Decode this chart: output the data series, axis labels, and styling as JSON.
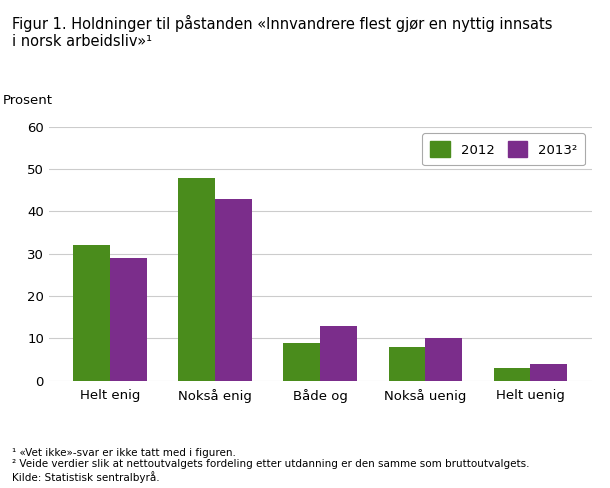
{
  "title": "Figur 1. Holdninger til påstanden «Innvandrere flest gjør en nyttig innsats\ni norsk arbeidsliv»¹",
  "ylabel": "Prosent",
  "categories": [
    "Helt enig",
    "Nokså enig",
    "Både og",
    "Nokså uenig",
    "Helt uenig"
  ],
  "values_2012": [
    32,
    48,
    9,
    8,
    3
  ],
  "values_2013": [
    29,
    43,
    13,
    10,
    4
  ],
  "color_2012": "#4a8c1c",
  "color_2013": "#7b2d8b",
  "legend_2012": "2012",
  "legend_2013": "2013²",
  "ylim": [
    0,
    60
  ],
  "yticks": [
    0,
    10,
    20,
    30,
    40,
    50,
    60
  ],
  "footnote1": "¹ «Vet ikke»-svar er ikke tatt med i figuren.",
  "footnote2": "² Veide verdier slik at nettoutvalgets fordeling etter utdanning er den samme som bruttoutvalgets.",
  "footnote3": "Kilde: Statistisk sentralbyrå.",
  "background_color": "#ffffff",
  "grid_color": "#cccccc",
  "bar_width": 0.35
}
